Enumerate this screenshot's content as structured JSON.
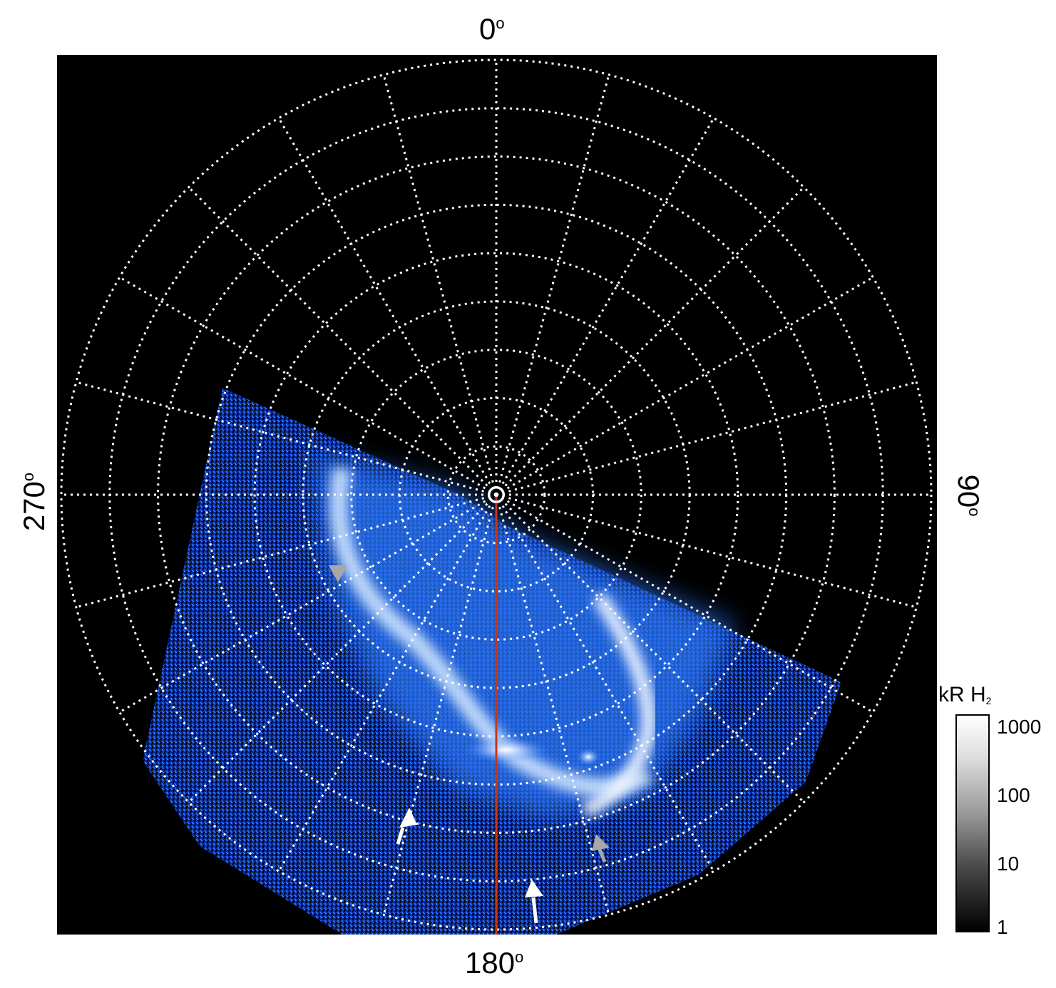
{
  "labels": {
    "top": "0",
    "bottom": "180",
    "left": "270",
    "right": "90",
    "degree_symbol": "o"
  },
  "colorbar": {
    "title": "kR H",
    "title_sub": "2",
    "ticks": [
      "1000",
      "100",
      "10",
      "1"
    ],
    "scale": "log"
  },
  "colors": {
    "background": "#000000",
    "grid": "#ffffff",
    "aurora_dim": "#0a2d9c",
    "aurora_mid": "#2f7bf0",
    "aurora_bright": "#e8f3ff",
    "meridian_line": "#c8341a",
    "arrow_white": "#ffffff",
    "arrow_gray": "#a8a8a8"
  },
  "grid": {
    "longitude_step_deg": 15,
    "latitude_circles": 9
  }
}
